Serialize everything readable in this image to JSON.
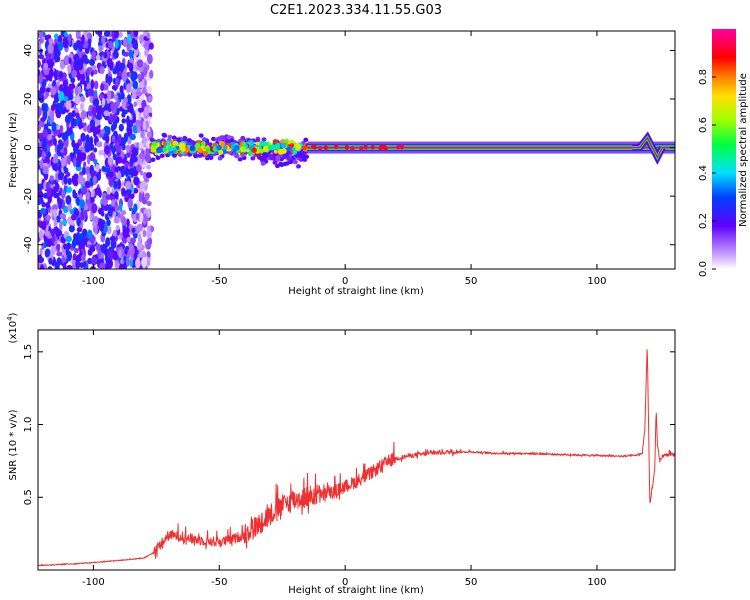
{
  "title": "C2E1.2023.334.11.55.G03",
  "chart_data": [
    {
      "type": "heatmap",
      "xlabel": "Height of straight line (km)",
      "ylabel": "Frequency (Hz)",
      "xlim": [
        -122,
        131
      ],
      "ylim": [
        -50,
        48
      ],
      "x_ticks": [
        -100,
        -50,
        0,
        50,
        100
      ],
      "x_tick_labels": [
        "-100",
        "-50",
        "0",
        "50",
        "100"
      ],
      "y_ticks": [
        -40,
        -20,
        0,
        20,
        40
      ],
      "y_tick_labels": [
        "-40",
        "-20",
        "0",
        "20",
        "40"
      ],
      "colorbar": {
        "label": "Normalized spectral amplitude",
        "range": [
          0,
          1
        ],
        "ticks": [
          0,
          0.2,
          0.4,
          0.6,
          0.8
        ],
        "tick_labels": [
          "0.0",
          "0.2",
          "0.4",
          "0.6",
          "0.8"
        ],
        "colormap": "white-violet-blue-cyan-green-yellow-red-magenta"
      },
      "features": [
        {
          "kind": "broadband_noise",
          "x_range": [
            -122,
            -77
          ],
          "y_range": [
            -50,
            48
          ],
          "amplitude": 0.3
        },
        {
          "kind": "scattered_signal",
          "x_range": [
            -77,
            -15
          ],
          "center_hz": 0,
          "spread_hz": 5,
          "amplitude": 0.6
        },
        {
          "kind": "steady_carrier",
          "x_range": [
            -15,
            131
          ],
          "center_hz": 0,
          "amplitude": 0.95
        },
        {
          "kind": "frequency_excursion",
          "x": 120,
          "peak_hz": 4,
          "trough_hz": -4
        }
      ]
    },
    {
      "type": "line",
      "xlabel": "Height of straight line (km)",
      "ylabel": "SNR (10 * v/v)",
      "y_scale_label": "(x10^4)",
      "xlim": [
        -122,
        131
      ],
      "ylim": [
        0,
        16500
      ],
      "x_ticks": [
        -100,
        -50,
        0,
        50,
        100
      ],
      "x_tick_labels": [
        "-100",
        "-50",
        "0",
        "50",
        "100"
      ],
      "y_ticks": [
        5000,
        10000,
        15000
      ],
      "y_tick_labels": [
        "0.5",
        "1.0",
        "1.5"
      ],
      "color": "#f03030",
      "series": [
        {
          "x": [
            -122,
            -110,
            -100,
            -90,
            -80,
            -76,
            -72,
            -70,
            -65,
            -60,
            -55,
            -50,
            -45,
            -40,
            -35,
            -30,
            -25,
            -20,
            -15,
            -10,
            -5,
            0,
            5,
            10,
            15,
            20,
            25,
            30,
            35,
            40,
            45,
            50,
            55,
            60,
            70,
            80,
            90,
            100,
            110,
            115,
            118,
            119,
            120,
            120.5,
            121,
            122,
            123,
            123.5,
            124,
            125,
            126,
            128,
            131
          ],
          "values": [
            300,
            400,
            500,
            650,
            800,
            1200,
            1900,
            2300,
            2200,
            2000,
            1900,
            1800,
            2000,
            2300,
            2800,
            3600,
            4200,
            4600,
            4800,
            5000,
            5200,
            5600,
            6000,
            6500,
            7100,
            7600,
            7800,
            7900,
            8000,
            8050,
            8100,
            8100,
            8050,
            8000,
            8000,
            7950,
            7900,
            7850,
            7800,
            7850,
            8000,
            9500,
            15500,
            10000,
            4500,
            5500,
            7000,
            11200,
            8500,
            7400,
            7800,
            7900,
            7850
          ]
        }
      ]
    }
  ]
}
